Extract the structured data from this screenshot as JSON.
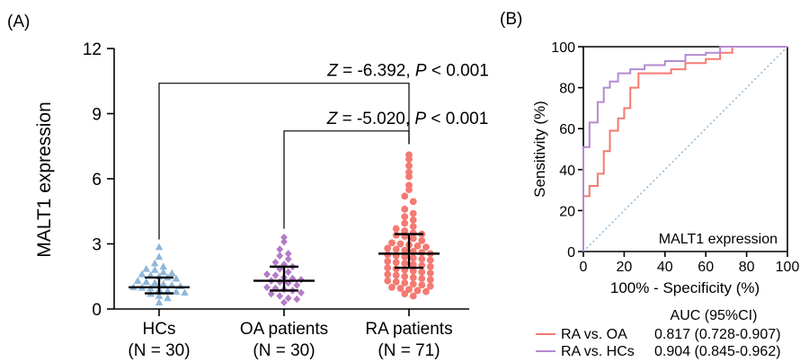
{
  "panels": {
    "a_label": "(A)",
    "b_label": "(B)"
  },
  "chart_data": [
    {
      "type": "scatter",
      "panel": "(A)",
      "ylabel": "MALT1 expression",
      "ylim": [
        0,
        12
      ],
      "yticks": [
        "0",
        "3",
        "6",
        "9",
        "12"
      ],
      "categories": [
        {
          "name": "HCs",
          "n_label": "(N = 30)",
          "color": "#8fb7d9",
          "marker": "triangle",
          "median": 1.0,
          "q1": 0.72,
          "q3": 1.45,
          "values": [
            2.85,
            2.4,
            2.1,
            1.95,
            1.85,
            1.8,
            1.7,
            1.65,
            1.6,
            1.55,
            1.5,
            1.45,
            1.4,
            1.3,
            1.25,
            1.2,
            1.15,
            1.1,
            1.05,
            1.0,
            0.98,
            0.95,
            0.9,
            0.85,
            0.8,
            0.75,
            0.7,
            0.6,
            0.5,
            0.3
          ]
        },
        {
          "name": "OA patients",
          "n_label": "(N = 30)",
          "color": "#b47cc7",
          "marker": "diamond",
          "median": 1.3,
          "q1": 0.85,
          "q3": 1.95,
          "values": [
            3.3,
            3.1,
            2.75,
            2.55,
            2.45,
            2.3,
            2.15,
            2.05,
            1.95,
            1.85,
            1.7,
            1.6,
            1.55,
            1.45,
            1.4,
            1.35,
            1.3,
            1.25,
            1.2,
            1.1,
            1.0,
            0.95,
            0.9,
            0.85,
            0.75,
            0.7,
            0.6,
            0.5,
            0.45,
            0.3
          ]
        },
        {
          "name": "RA patients",
          "n_label": "(N = 71)",
          "color": "#f47a72",
          "marker": "circle",
          "median": 2.55,
          "q1": 1.9,
          "q3": 3.45,
          "values": [
            7.1,
            6.9,
            6.6,
            6.3,
            6.1,
            5.7,
            5.5,
            5.2,
            4.95,
            4.6,
            4.4,
            4.25,
            4.1,
            3.95,
            3.8,
            3.7,
            3.6,
            3.5,
            3.45,
            3.4,
            3.35,
            3.25,
            3.15,
            3.05,
            3.0,
            2.95,
            2.9,
            2.85,
            2.8,
            2.75,
            2.7,
            2.65,
            2.6,
            2.55,
            2.5,
            2.45,
            2.4,
            2.35,
            2.3,
            2.25,
            2.2,
            2.15,
            2.1,
            2.05,
            2.0,
            1.95,
            1.9,
            1.85,
            1.8,
            1.75,
            1.7,
            1.65,
            1.6,
            1.55,
            1.5,
            1.45,
            1.4,
            1.35,
            1.3,
            1.25,
            1.2,
            1.15,
            1.1,
            1.05,
            1.0,
            0.95,
            0.9,
            0.85,
            0.8,
            0.7,
            0.6
          ]
        }
      ],
      "annotations": [
        {
          "text_z": "Z",
          "text_mid": " = -6.392, ",
          "text_p": "P",
          "text_end": " < 0.001",
          "from": 0,
          "to": 2,
          "y": 10.4
        },
        {
          "text_z": "Z",
          "text_mid": " = -5.020, ",
          "text_p": "P",
          "text_end": " < 0.001",
          "from": 1,
          "to": 2,
          "y": 8.2
        }
      ]
    },
    {
      "type": "line",
      "panel": "(B)",
      "xlabel": "100% - Specificity (%)",
      "ylabel": "Sensitivity (%)",
      "xlim": [
        0,
        100
      ],
      "ylim": [
        0,
        100
      ],
      "xticks": [
        "0",
        "20",
        "40",
        "60",
        "80",
        "100"
      ],
      "yticks": [
        "0",
        "20",
        "40",
        "60",
        "80",
        "100"
      ],
      "inset_label": "MALT1 expression",
      "reference_line_color": "#7fb3d9",
      "series": [
        {
          "name": "RA vs. OA",
          "color": "#f47a72",
          "x": [
            0,
            0,
            3,
            3,
            7,
            7,
            10,
            10,
            13,
            13,
            17,
            17,
            20,
            20,
            23,
            23,
            27,
            27,
            33,
            33,
            43,
            43,
            50,
            50,
            60,
            60,
            67,
            67,
            73,
            73,
            80,
            100
          ],
          "y": [
            0,
            27,
            27,
            32,
            32,
            38,
            38,
            49,
            49,
            59,
            59,
            65,
            65,
            70,
            70,
            80,
            80,
            87,
            87,
            87,
            87,
            89,
            89,
            92,
            92,
            94,
            94,
            97,
            97,
            100,
            100,
            100
          ]
        },
        {
          "name": "RA vs. HCs",
          "color": "#b48ad0",
          "x": [
            0,
            0,
            3,
            3,
            7,
            7,
            10,
            10,
            13,
            13,
            17,
            17,
            23,
            23,
            30,
            30,
            40,
            40,
            50,
            50,
            60,
            60,
            67,
            67,
            73,
            100
          ],
          "y": [
            0,
            51,
            51,
            63,
            63,
            73,
            73,
            80,
            80,
            83,
            83,
            87,
            87,
            89,
            89,
            91,
            91,
            93,
            93,
            96,
            96,
            97,
            97,
            100,
            100,
            100
          ]
        }
      ],
      "legend_header": "AUC (95%CI)",
      "legend": [
        {
          "name": "RA vs. OA",
          "auc": "0.817 (0.728-0.907)"
        },
        {
          "name": "RA vs. HCs",
          "auc": "0.904 (0.845-0.962)"
        }
      ]
    }
  ]
}
